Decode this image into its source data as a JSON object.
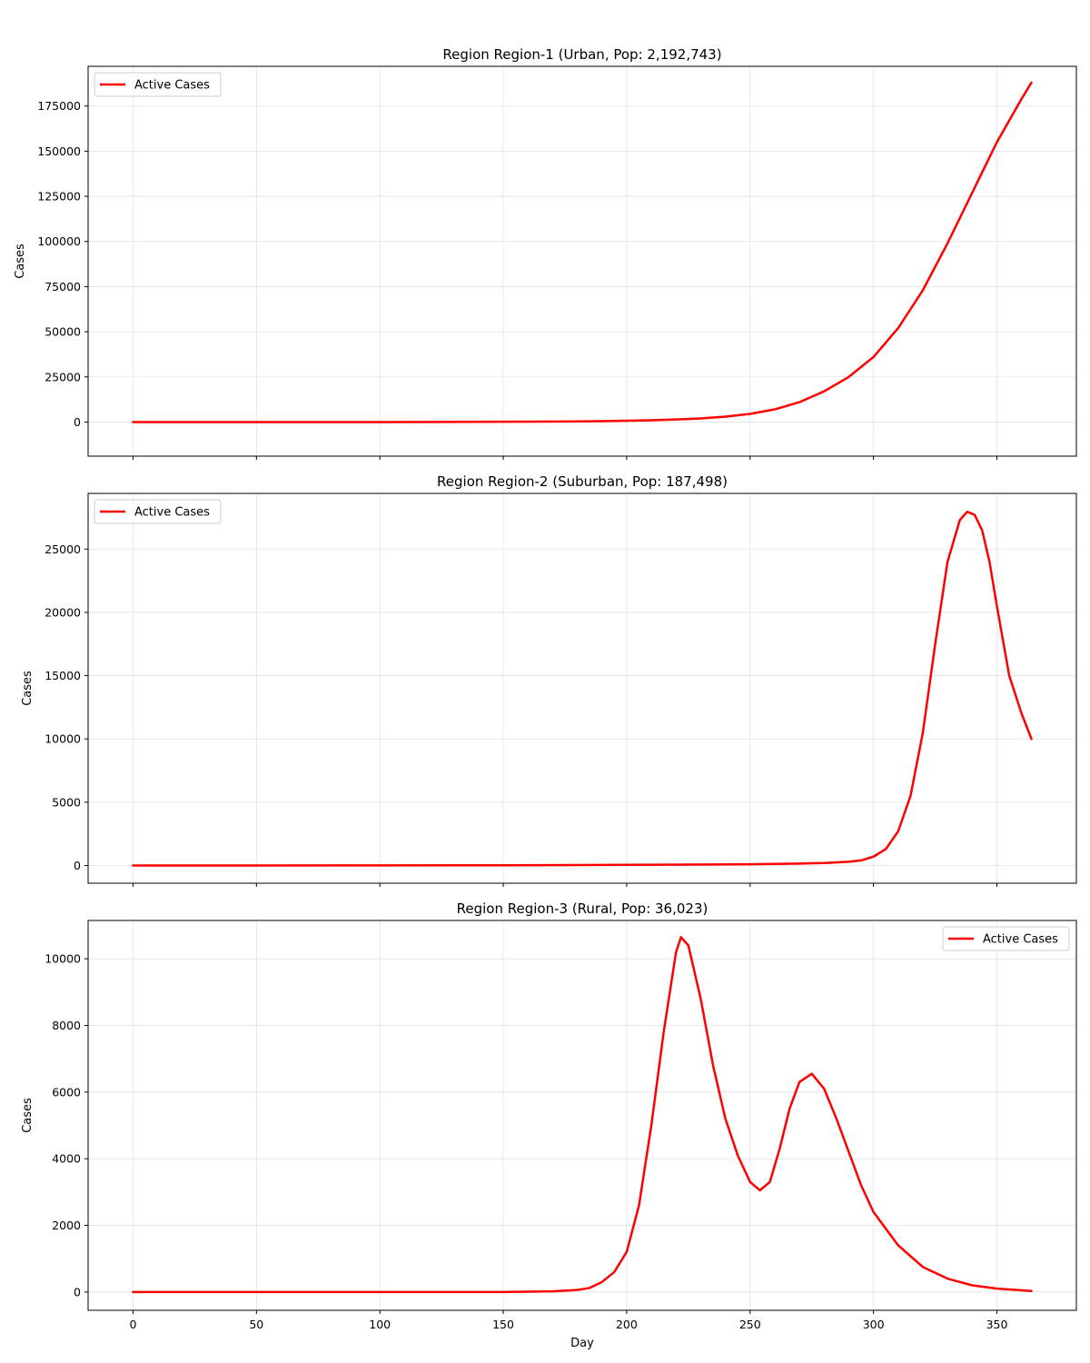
{
  "chart_data": [
    {
      "type": "line",
      "title": "Region Region-1 (Urban, Pop: 2,192,743)",
      "xlabel": "",
      "ylabel": "Cases",
      "xlim": [
        -18.2,
        382.2
      ],
      "ylim": [
        -18900,
        197000
      ],
      "xticks": [
        0,
        50,
        100,
        150,
        200,
        250,
        300,
        350
      ],
      "yticks": [
        0,
        25000,
        50000,
        75000,
        100000,
        125000,
        150000,
        175000
      ],
      "grid": true,
      "legend_position": "top-left",
      "series": [
        {
          "name": "Active Cases",
          "color": "#ff0000",
          "x": [
            0,
            25,
            50,
            75,
            100,
            125,
            150,
            175,
            190,
            200,
            210,
            220,
            230,
            240,
            250,
            260,
            270,
            280,
            290,
            300,
            310,
            320,
            330,
            340,
            350,
            360,
            364
          ],
          "y": [
            0,
            0,
            0,
            0,
            0,
            50,
            150,
            300,
            500,
            700,
            1000,
            1400,
            2000,
            3000,
            4500,
            7000,
            11000,
            17000,
            25000,
            36000,
            52000,
            73000,
            99000,
            127000,
            155000,
            179000,
            188000
          ]
        }
      ]
    },
    {
      "type": "line",
      "title": "Region Region-2 (Suburban, Pop: 187,498)",
      "xlabel": "",
      "ylabel": "Cases",
      "xlim": [
        -18.2,
        382.2
      ],
      "ylim": [
        -1400,
        29400
      ],
      "xticks": [
        0,
        50,
        100,
        150,
        200,
        250,
        300,
        350
      ],
      "yticks": [
        0,
        5000,
        10000,
        15000,
        20000,
        25000
      ],
      "grid": true,
      "legend_position": "top-left",
      "series": [
        {
          "name": "Active Cases",
          "color": "#ff0000",
          "x": [
            0,
            50,
            100,
            150,
            200,
            225,
            250,
            270,
            280,
            290,
            295,
            300,
            305,
            310,
            315,
            320,
            325,
            330,
            335,
            338,
            341,
            344,
            347,
            350,
            355,
            360,
            364
          ],
          "y": [
            0,
            0,
            10,
            20,
            50,
            70,
            100,
            150,
            200,
            300,
            400,
            700,
            1300,
            2700,
            5500,
            10500,
            17500,
            24000,
            27300,
            27950,
            27700,
            26500,
            24000,
            20500,
            15000,
            12000,
            10000
          ]
        }
      ]
    },
    {
      "type": "line",
      "title": "Region Region-3 (Rural, Pop: 36,023)",
      "xlabel": "Day",
      "ylabel": "Cases",
      "xlim": [
        -18.2,
        382.2
      ],
      "ylim": [
        -550,
        11150
      ],
      "xticks": [
        0,
        50,
        100,
        150,
        200,
        250,
        300,
        350
      ],
      "yticks": [
        0,
        2000,
        4000,
        6000,
        8000,
        10000
      ],
      "grid": true,
      "legend_position": "top-right",
      "series": [
        {
          "name": "Active Cases",
          "color": "#ff0000",
          "x": [
            0,
            50,
            100,
            150,
            170,
            180,
            185,
            190,
            195,
            200,
            205,
            210,
            215,
            220,
            222,
            225,
            230,
            235,
            240,
            245,
            250,
            254,
            258,
            262,
            266,
            270,
            275,
            280,
            285,
            290,
            295,
            300,
            310,
            320,
            330,
            340,
            350,
            364
          ],
          "y": [
            0,
            0,
            0,
            0,
            20,
            60,
            120,
            300,
            600,
            1200,
            2600,
            5000,
            7800,
            10200,
            10650,
            10400,
            8800,
            6800,
            5200,
            4100,
            3300,
            3050,
            3300,
            4300,
            5500,
            6300,
            6550,
            6100,
            5200,
            4200,
            3200,
            2400,
            1400,
            750,
            400,
            200,
            100,
            30
          ]
        }
      ]
    }
  ]
}
